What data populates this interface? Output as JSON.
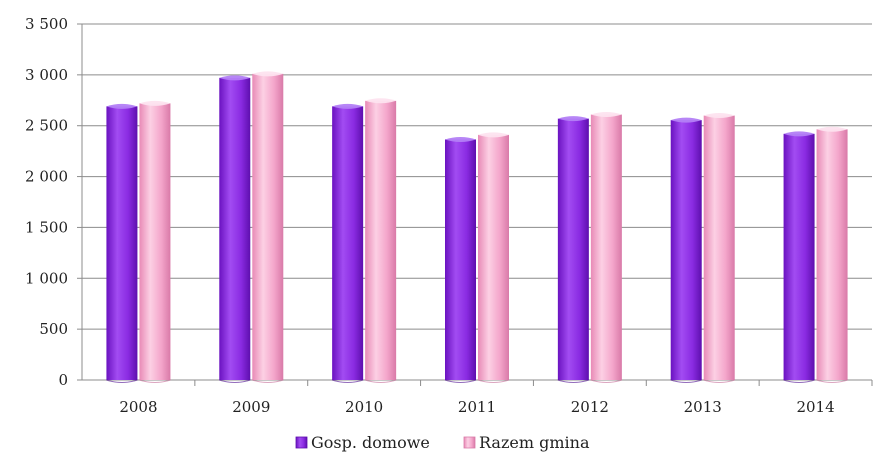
{
  "chart_data": {
    "type": "bar",
    "title": "",
    "xlabel": "",
    "ylabel": "",
    "categories": [
      "2008",
      "2009",
      "2010",
      "2011",
      "2012",
      "2013",
      "2014"
    ],
    "series": [
      {
        "name": "Gosp. domowe",
        "color": "#8a2be2",
        "values": [
          2690,
          2970,
          2690,
          2365,
          2570,
          2555,
          2420
        ]
      },
      {
        "name": "Razem gmina",
        "color": "#f4a0c8",
        "values": [
          2720,
          3010,
          2745,
          2410,
          2610,
          2600,
          2465
        ]
      }
    ],
    "ylim": [
      0,
      3500
    ],
    "yticks": [
      0,
      500,
      1000,
      1500,
      2000,
      2500,
      3000,
      3500
    ],
    "ytick_labels": [
      "0",
      "500",
      "1 000",
      "1 500",
      "2 000",
      "2 500",
      "3 000",
      "3 500"
    ],
    "grid": true,
    "legend_position": "bottom"
  }
}
